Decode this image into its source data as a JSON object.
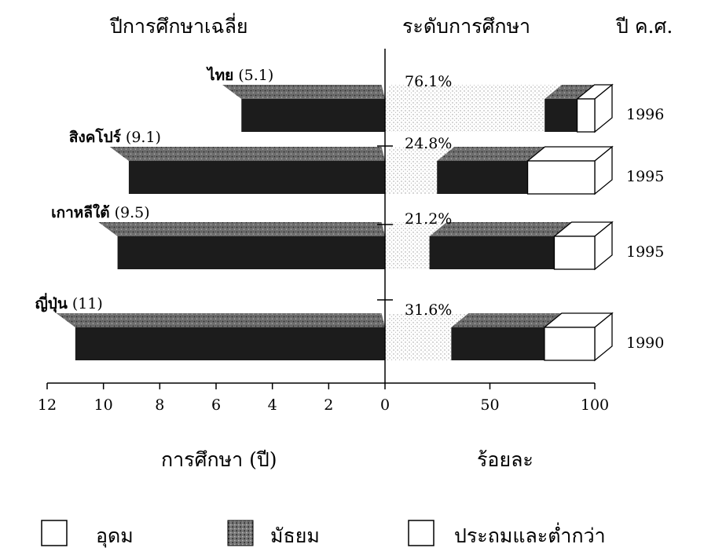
{
  "headers": {
    "left": "ปีการศึกษาเฉลี่ย",
    "middle": "ระดับการศึกษา",
    "right": "ปี ค.ศ."
  },
  "axis_titles": {
    "left": "การศึกษา (ปี)",
    "right": "ร้อยละ"
  },
  "legend": [
    {
      "key": "higher",
      "label": "อุดม"
    },
    {
      "key": "secondary",
      "label": "มัธยม"
    },
    {
      "key": "primary",
      "label": "ประถมและต่ำกว่า"
    }
  ],
  "colors": {
    "secondary": "#1c1c1c",
    "secondary_top": "#7a7a7a",
    "higher": "#ffffff",
    "stipple": "#d4d4d4",
    "outline": "#000000"
  },
  "chart_data": [
    {
      "type": "bar",
      "orientation": "horizontal",
      "title": "ปีการศึกษาเฉลี่ย",
      "xlabel": "การศึกษา (ปี)",
      "xlim": [
        12,
        0
      ],
      "x_ticks": [
        "12",
        "10",
        "8",
        "6",
        "4",
        "2",
        "0"
      ],
      "categories": [
        "ไทย",
        "สิงคโปร์",
        "เกาหลีใต้",
        "ญี่ปุ่น"
      ],
      "value_labels": [
        "(5.1)",
        "(9.1)",
        "(9.5)",
        "(11)"
      ],
      "values": [
        5.1,
        9.1,
        9.5,
        11
      ]
    },
    {
      "type": "bar",
      "orientation": "horizontal",
      "stacked": true,
      "title": "ระดับการศึกษา",
      "xlabel": "ร้อยละ",
      "xlim": [
        0,
        100
      ],
      "x_ticks": [
        "0",
        "50",
        "100"
      ],
      "categories": [
        "ไทย",
        "สิงคโปร์",
        "เกาหลีใต้",
        "ญี่ปุ่น"
      ],
      "years": [
        "1996",
        "1995",
        "1995",
        "1990"
      ],
      "percent_labels": [
        "76.1%",
        "24.8%",
        "21.2%",
        "31.6%"
      ],
      "series": [
        {
          "name": "ประถมและต่ำกว่า",
          "values": [
            76.1,
            24.8,
            21.2,
            31.6
          ]
        },
        {
          "name": "มัธยม",
          "values": [
            15.5,
            43.2,
            59.5,
            44.4
          ]
        },
        {
          "name": "อุดม",
          "values": [
            8.4,
            32.0,
            19.3,
            24.0
          ]
        }
      ]
    }
  ]
}
